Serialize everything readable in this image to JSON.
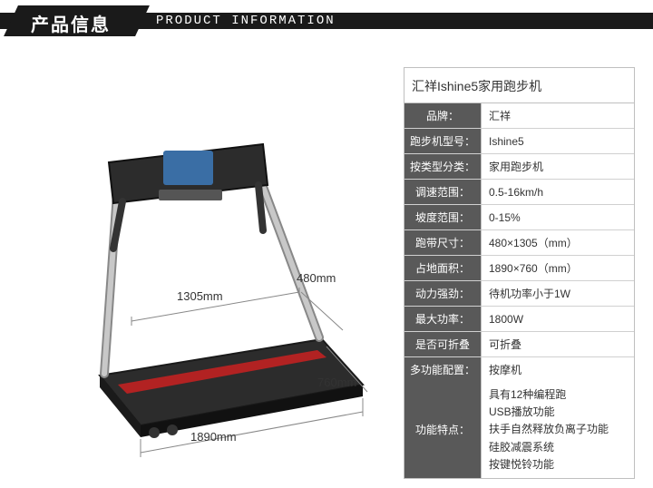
{
  "header": {
    "title_cn": "产品信息",
    "title_en": "PRODUCT INFORMATION"
  },
  "dimensions": {
    "belt_length": "1305mm",
    "belt_width": "480mm",
    "footprint_length": "1890mm",
    "footprint_width": "760mm"
  },
  "spec": {
    "title": "汇祥Ishine5家用跑步机",
    "rows": [
      {
        "label": "品牌：",
        "value": "汇祥"
      },
      {
        "label": "跑步机型号：",
        "value": "Ishine5"
      },
      {
        "label": "按类型分类：",
        "value": "家用跑步机"
      },
      {
        "label": "调速范围：",
        "value": "0.5-16km/h"
      },
      {
        "label": "坡度范围：",
        "value": "0-15%"
      },
      {
        "label": "跑带尺寸：",
        "value": "480×1305（mm）"
      },
      {
        "label": "占地面积：",
        "value": "1890×760（mm）"
      },
      {
        "label": "动力强劲：",
        "value": "待机功率小于1W"
      },
      {
        "label": "最大功率：",
        "value": "1800W"
      },
      {
        "label": "是否可折叠",
        "value": "可折叠"
      },
      {
        "label": "多功能配置：",
        "value": "按摩机"
      }
    ],
    "features_label": "功能特点：",
    "features": [
      "具有12种编程跑",
      "USB播放功能",
      "扶手自然释放负离子功能",
      "硅胶减震系统",
      "按键悦铃功能"
    ]
  },
  "colors": {
    "header_bg": "#1a1a1a",
    "label_bg": "#595959",
    "border": "#bfbfbf",
    "treadmill_frame": "#5b5b5b",
    "treadmill_deck": "#2c2c2c",
    "treadmill_accent": "#b22222"
  }
}
